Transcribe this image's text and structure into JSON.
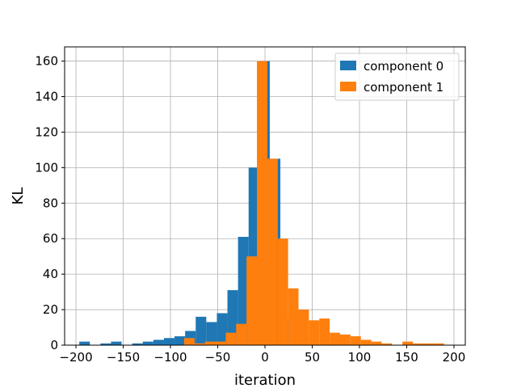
{
  "chart_data": {
    "type": "bar",
    "xlabel": "iteration",
    "ylabel": "KL",
    "xlim": [
      -212,
      212
    ],
    "ylim": [
      0,
      168
    ],
    "xticks": [
      -200,
      -150,
      -100,
      -50,
      0,
      50,
      100,
      150,
      200
    ],
    "yticks": [
      0,
      20,
      40,
      60,
      80,
      100,
      120,
      140,
      160
    ],
    "grid": true,
    "legend_position": "top-right",
    "series": [
      {
        "name": "component 0",
        "color": "#1f77b4",
        "bins": [
          [
            -196.5,
            -185.3,
            2
          ],
          [
            -185.3,
            -174.1,
            0
          ],
          [
            -174.1,
            -162.9,
            1
          ],
          [
            -162.9,
            -151.7,
            2
          ],
          [
            -151.7,
            -140.5,
            0
          ],
          [
            -140.5,
            -129.3,
            1
          ],
          [
            -129.3,
            -118.1,
            2
          ],
          [
            -118.1,
            -106.9,
            3
          ],
          [
            -106.9,
            -95.7,
            4
          ],
          [
            -95.7,
            -84.5,
            5
          ],
          [
            -84.5,
            -73.3,
            8
          ],
          [
            -73.3,
            -62.1,
            16
          ],
          [
            -62.1,
            -50.9,
            13
          ],
          [
            -50.9,
            -39.7,
            18
          ],
          [
            -39.7,
            -28.5,
            31
          ],
          [
            -28.5,
            -17.3,
            61
          ],
          [
            -17.3,
            -6.1,
            100
          ],
          [
            -6.1,
            5.1,
            160
          ],
          [
            5.1,
            16.3,
            105
          ],
          [
            16.3,
            27.5,
            15
          ],
          [
            27.5,
            38.7,
            0
          ],
          [
            38.7,
            49.9,
            0
          ]
        ]
      },
      {
        "name": "component 1",
        "color": "#ff7f0e",
        "bins": [
          [
            -85.5,
            -74.5,
            4
          ],
          [
            -74.5,
            -63.5,
            1
          ],
          [
            -63.5,
            -52.5,
            2
          ],
          [
            -52.5,
            -41.5,
            2
          ],
          [
            -41.5,
            -30.5,
            7
          ],
          [
            -30.5,
            -19.5,
            12
          ],
          [
            -19.5,
            -8.5,
            50
          ],
          [
            -8.5,
            2.5,
            160
          ],
          [
            2.5,
            13.5,
            105
          ],
          [
            13.5,
            24.5,
            60
          ],
          [
            24.5,
            35.5,
            32
          ],
          [
            35.5,
            46.5,
            20
          ],
          [
            46.5,
            57.5,
            14
          ],
          [
            57.5,
            68.5,
            15
          ],
          [
            68.5,
            79.5,
            7
          ],
          [
            79.5,
            90.5,
            6
          ],
          [
            90.5,
            101.5,
            5
          ],
          [
            101.5,
            112.5,
            3
          ],
          [
            112.5,
            123.5,
            2
          ],
          [
            123.5,
            134.5,
            1
          ],
          [
            134.5,
            145.5,
            0
          ],
          [
            145.5,
            156.5,
            2
          ],
          [
            156.5,
            167.5,
            1
          ],
          [
            167.5,
            178.5,
            1
          ],
          [
            178.5,
            189.5,
            1
          ]
        ]
      }
    ]
  }
}
